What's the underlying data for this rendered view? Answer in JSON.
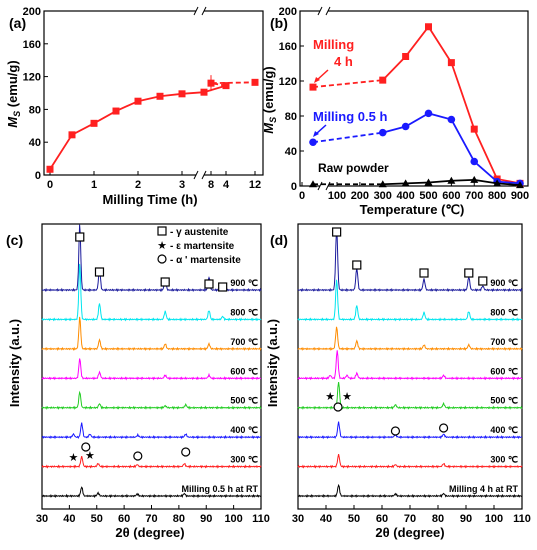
{
  "chart_data": [
    {
      "panel": "(a)",
      "type": "line",
      "xlabel": "Milling Time (h)",
      "ylabel": "M_S (emu/g)",
      "xticks_left": [
        "0",
        "1",
        "2",
        "3",
        "4"
      ],
      "xticks_right": [
        "8",
        "12"
      ],
      "yticks": [
        "0",
        "40",
        "80",
        "120",
        "160",
        "200"
      ],
      "ylim": [
        0,
        200
      ],
      "axis_break": "between 4 and 8 h",
      "series": [
        {
          "color": "#ff2020",
          "x": [
            0,
            0.5,
            1,
            1.5,
            2,
            2.5,
            3,
            3.5,
            4,
            8,
            12
          ],
          "y": [
            7,
            49,
            63,
            78,
            90,
            96,
            99,
            101,
            109,
            112,
            113
          ]
        }
      ]
    },
    {
      "panel": "(b)",
      "type": "line",
      "xlabel": "Temperature (℃)",
      "ylabel": "M_S (emu/g)",
      "xticks": [
        "0",
        "100",
        "200",
        "300",
        "400",
        "500",
        "600",
        "700",
        "800",
        "900"
      ],
      "yticks": [
        "0",
        "40",
        "80",
        "120",
        "160",
        "200"
      ],
      "ylim": [
        0,
        200
      ],
      "axis_break": "between 0 and 100 on x axis",
      "series": [
        {
          "name": "Milling 4 h",
          "color": "#ff2020",
          "x": [
            25,
            300,
            400,
            500,
            600,
            700,
            800,
            900
          ],
          "y": [
            113,
            121,
            148,
            182,
            141,
            65,
            8,
            3
          ]
        },
        {
          "name": "Milling 0.5 h",
          "color": "#1a1aff",
          "x": [
            25,
            300,
            400,
            500,
            600,
            700,
            800,
            900
          ],
          "y": [
            50,
            61,
            68,
            83,
            76,
            28,
            5,
            3
          ]
        },
        {
          "name": "Raw powder",
          "color": "#000000",
          "x": [
            25,
            300,
            400,
            500,
            600,
            700,
            800,
            900
          ],
          "y": [
            2,
            2,
            3,
            4,
            6,
            7,
            3,
            1
          ]
        }
      ],
      "labels": {
        "milling_4h_a": "Milling",
        "milling_4h_b": "4 h",
        "milling_05h": "Milling 0.5 h",
        "raw": "Raw powder"
      }
    },
    {
      "panel": "(c)",
      "type": "line",
      "xlabel": "2θ (degree)",
      "ylabel": "Intensity (a.u.)",
      "xticks": [
        "30",
        "40",
        "50",
        "60",
        "70",
        "80",
        "90",
        "100",
        "110"
      ],
      "xlim": [
        30,
        110
      ],
      "legend": [
        "- γ austenite",
        "- ε martensite",
        "- α ' martensite"
      ],
      "traces": [
        {
          "label": "Milling  0.5 h at RT",
          "color": "#000000",
          "peaks": [
            [
              44.5,
              9
            ],
            [
              50.5,
              3
            ],
            [
              64.8,
              2
            ],
            [
              82,
              2.5
            ]
          ]
        },
        {
          "label": "300 ℃",
          "color": "#ff2020",
          "peaks": [
            [
              44.5,
              10
            ],
            [
              50.5,
              3
            ],
            [
              64.8,
              2
            ],
            [
              82,
              3
            ]
          ]
        },
        {
          "label": "400 ℃",
          "color": "#1a1aff",
          "peaks": [
            [
              41.5,
              3
            ],
            [
              44.5,
              14
            ],
            [
              47.5,
              3
            ],
            [
              65,
              2
            ],
            [
              82.5,
              3
            ]
          ]
        },
        {
          "label": "500 ℃",
          "color": "#22cc22",
          "peaks": [
            [
              43.8,
              16
            ],
            [
              51,
              4
            ],
            [
              75,
              2
            ],
            [
              82.5,
              3
            ]
          ]
        },
        {
          "label": "600 ℃",
          "color": "#ff00ff",
          "peaks": [
            [
              43.8,
              20
            ],
            [
              51,
              6
            ],
            [
              75,
              3
            ],
            [
              91,
              3
            ]
          ]
        },
        {
          "label": "700 ℃",
          "color": "#ff8c00",
          "peaks": [
            [
              43.8,
              32
            ],
            [
              51,
              9
            ],
            [
              75,
              5
            ],
            [
              91,
              5
            ]
          ]
        },
        {
          "label": "800 ℃",
          "color": "#00e5ee",
          "peaks": [
            [
              43.8,
              56
            ],
            [
              51,
              16
            ],
            [
              75,
              8
            ],
            [
              91,
              9
            ],
            [
              96,
              3
            ]
          ]
        },
        {
          "label": "900 ℃",
          "color": "#1a1a9c",
          "peaks": [
            [
              43.8,
              66
            ],
            [
              51,
              20
            ],
            [
              75,
              10
            ],
            [
              91,
              13
            ],
            [
              96,
              4
            ]
          ]
        }
      ]
    },
    {
      "panel": "(d)",
      "type": "line",
      "xlabel": "2θ  (degree)",
      "ylabel": "Intensity (a.u.)",
      "xticks": [
        "30",
        "40",
        "50",
        "60",
        "70",
        "80",
        "90",
        "100",
        "110"
      ],
      "xlim": [
        30,
        110
      ],
      "traces": [
        {
          "label": "Milling  4 h at RT",
          "color": "#000000",
          "peaks": [
            [
              44.5,
              11
            ],
            [
              64.8,
              2
            ],
            [
              82,
              2.5
            ]
          ]
        },
        {
          "label": "300 ℃",
          "color": "#ff2020",
          "peaks": [
            [
              44.5,
              12
            ],
            [
              64.8,
              2
            ],
            [
              82,
              3
            ]
          ]
        },
        {
          "label": "400 ℃",
          "color": "#1a1aff",
          "peaks": [
            [
              44.5,
              15
            ],
            [
              64.8,
              2.5
            ],
            [
              82,
              3
            ]
          ]
        },
        {
          "label": "500 ℃",
          "color": "#22cc22",
          "peaks": [
            [
              44.5,
              26
            ],
            [
              64.8,
              3
            ],
            [
              82,
              4
            ]
          ]
        },
        {
          "label": "600 ℃",
          "color": "#ff00ff",
          "peaks": [
            [
              41.5,
              3
            ],
            [
              44,
              28
            ],
            [
              47.5,
              3
            ],
            [
              51,
              5
            ],
            [
              82,
              3
            ]
          ]
        },
        {
          "label": "700 ℃",
          "color": "#ff8c00",
          "peaks": [
            [
              43.8,
              22
            ],
            [
              51,
              8
            ],
            [
              75,
              4
            ],
            [
              91,
              4
            ]
          ]
        },
        {
          "label": "800 ℃",
          "color": "#00e5ee",
          "peaks": [
            [
              43.8,
              40
            ],
            [
              51,
              14
            ],
            [
              75,
              7
            ],
            [
              91,
              8
            ]
          ]
        },
        {
          "label": "900 ℃",
          "color": "#1a1a9c",
          "peaks": [
            [
              43.8,
              62
            ],
            [
              51,
              22
            ],
            [
              75,
              11
            ],
            [
              91,
              13
            ],
            [
              96,
              4
            ]
          ]
        }
      ]
    }
  ]
}
